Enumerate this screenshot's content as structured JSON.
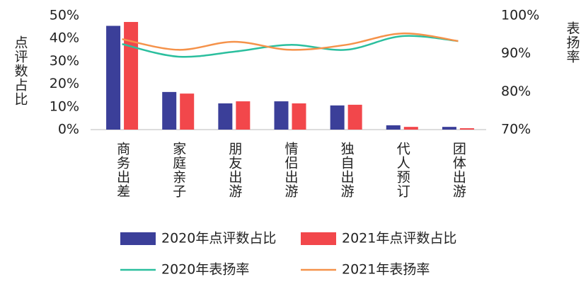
{
  "chart_data": {
    "type": "bar-line",
    "y_label": "点评数占比",
    "y2_label": "表扬率",
    "categories": [
      "商务出差",
      "家庭亲子",
      "朋友出游",
      "情侣出游",
      "独自出游",
      "代人预订",
      "团体出游"
    ],
    "series": [
      {
        "name": "2020年点评数占比",
        "type": "bar",
        "color": "#3b3f99",
        "values": [
          45.5,
          16.5,
          11.5,
          12.4,
          10.6,
          1.9,
          1.2
        ]
      },
      {
        "name": "2021年点评数占比",
        "type": "bar",
        "color": "#f2474b",
        "values": [
          47.2,
          15.8,
          12.4,
          11.5,
          10.9,
          1.2,
          0.6
        ]
      },
      {
        "name": "2020年表扬率",
        "type": "line",
        "axis": "y2",
        "color": "#2bbf9e",
        "values": [
          92.5,
          89.2,
          90.5,
          92.3,
          91.0,
          94.6,
          93.3
        ]
      },
      {
        "name": "2021年表扬率",
        "type": "line",
        "axis": "y2",
        "color": "#f5924a",
        "values": [
          93.8,
          91.0,
          93.1,
          91.0,
          92.3,
          95.3,
          93.3
        ]
      }
    ],
    "ylim": [
      0,
      50
    ],
    "yticks": [
      {
        "value": 0,
        "label": "0%"
      },
      {
        "value": 10,
        "label": "10%"
      },
      {
        "value": 20,
        "label": "20%"
      },
      {
        "value": 30,
        "label": "30%"
      },
      {
        "value": 40,
        "label": "40%"
      },
      {
        "value": 50,
        "label": "50%"
      }
    ],
    "y2lim": [
      70,
      100
    ],
    "y2ticks": [
      {
        "value": 70,
        "label": "70%"
      },
      {
        "value": 80,
        "label": "80%"
      },
      {
        "value": 90,
        "label": "90%"
      },
      {
        "value": 100,
        "label": "100%"
      }
    ],
    "grid": false
  }
}
